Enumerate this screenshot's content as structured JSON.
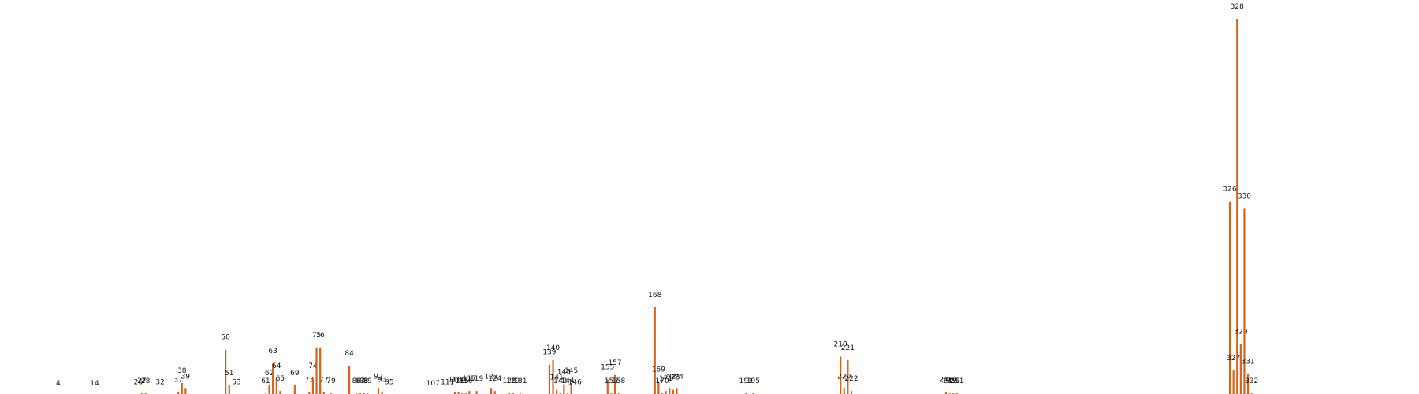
{
  "chart_data": {
    "type": "bar",
    "color": "#d9621b",
    "grid": false,
    "legend": "none",
    "xlim": [
      -12,
      378
    ],
    "ylim": [
      0,
      328
    ],
    "x": [
      4,
      14,
      26,
      27,
      28,
      32,
      37,
      38,
      39,
      50,
      51,
      53,
      61,
      62,
      63,
      64,
      65,
      69,
      73,
      74,
      75,
      76,
      77,
      79,
      84,
      86,
      87,
      88,
      89,
      92,
      93,
      95,
      107,
      111,
      113,
      114,
      115,
      116,
      117,
      119,
      123,
      124,
      128,
      129,
      131,
      139,
      140,
      141,
      142,
      143,
      144,
      145,
      146,
      155,
      156,
      157,
      158,
      168,
      169,
      170,
      171,
      172,
      173,
      174,
      193,
      195,
      219,
      220,
      221,
      222,
      248,
      249,
      250,
      251,
      326,
      327,
      328,
      329,
      330,
      331,
      332
    ],
    "values": [
      0,
      0,
      1,
      2,
      2,
      1,
      3,
      11,
      6,
      40,
      9,
      1,
      2,
      9,
      28,
      15,
      4,
      9,
      3,
      15,
      42,
      42,
      3,
      2,
      26,
      2,
      2,
      2,
      2,
      6,
      3,
      1,
      0,
      1,
      3,
      3,
      2,
      2,
      4,
      4,
      6,
      4,
      2,
      2,
      2,
      27,
      31,
      5,
      2,
      10,
      2,
      11,
      1,
      14,
      2,
      18,
      2,
      77,
      12,
      2,
      4,
      6,
      5,
      6,
      2,
      2,
      34,
      6,
      31,
      4,
      3,
      2,
      2,
      2,
      169,
      22,
      328,
      45,
      163,
      19,
      2
    ],
    "labels": [
      "4",
      "14",
      "26",
      "27",
      "28",
      "32",
      "37",
      "38",
      "39",
      "50",
      "51",
      "53",
      "61",
      "62",
      "63",
      "64",
      "65",
      "69",
      "73",
      "74",
      "75",
      "76",
      "77",
      "79",
      "84",
      "86",
      "87",
      "88",
      "89",
      "92",
      "93",
      "95",
      "107",
      "111",
      "113",
      "114",
      "115",
      "116",
      "117",
      "119",
      "123",
      "124",
      "128",
      "129",
      "131",
      "139",
      "140",
      "141",
      "142",
      "143",
      "144",
      "145",
      "146",
      "155",
      "156",
      "157",
      "158",
      "168",
      "169",
      "170",
      "171",
      "172",
      "173",
      "174",
      "193",
      "195",
      "219",
      "220",
      "221",
      "222",
      "248",
      "249",
      "250",
      "251",
      "326",
      "327",
      "328",
      "329",
      "330",
      "331",
      "332"
    ]
  }
}
